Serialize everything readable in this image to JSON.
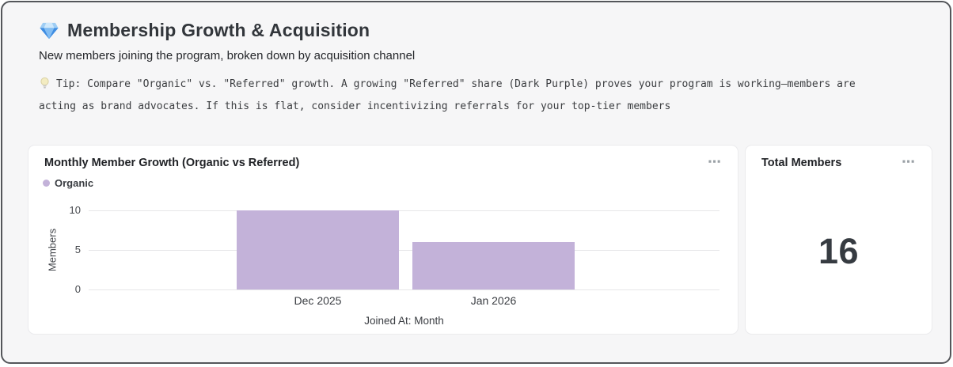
{
  "colors": {
    "accent_bar_organic": "#c3b2d9",
    "page_background": "#f6f6f7",
    "outer_border": "#54565a",
    "card_background": "#ffffff",
    "gridline": "#e6e6e8",
    "big_number": "#363b41"
  },
  "icons": {
    "gem": "💎",
    "lightbulb": "💡",
    "ellipsis": "⋯",
    "legend_dot": "●"
  },
  "header": {
    "title": "Membership Growth & Acquisition",
    "subtitle": "New members joining the program, broken down by acquisition channel",
    "tip": "Tip: Compare \"Organic\" vs. \"Referred\" growth. A growing \"Referred\" share (Dark Purple) proves your program is working—members are acting as brand advocates. If this is flat, consider incentivizing referrals for your top-tier members"
  },
  "chart_card": {
    "title": "Monthly Member Growth (Organic vs Referred)",
    "menu": "⋯",
    "legend": [
      {
        "label": "Organic",
        "color": "#c3b2d9"
      }
    ]
  },
  "chart_data": {
    "type": "bar",
    "title": "Monthly Member Growth (Organic vs Referred)",
    "categories": [
      "Dec 2025",
      "Jan 2026"
    ],
    "series": [
      {
        "name": "Organic",
        "values": [
          10,
          6
        ]
      }
    ],
    "xlabel": "Joined At: Month",
    "ylabel": "Members",
    "ylim": [
      0,
      10
    ],
    "yticks": [
      0,
      5,
      10
    ],
    "grid": true,
    "legend_position": "top-left",
    "bar_color": "#c3b2d9"
  },
  "total_card": {
    "title": "Total Members",
    "menu": "⋯",
    "value": "16"
  }
}
